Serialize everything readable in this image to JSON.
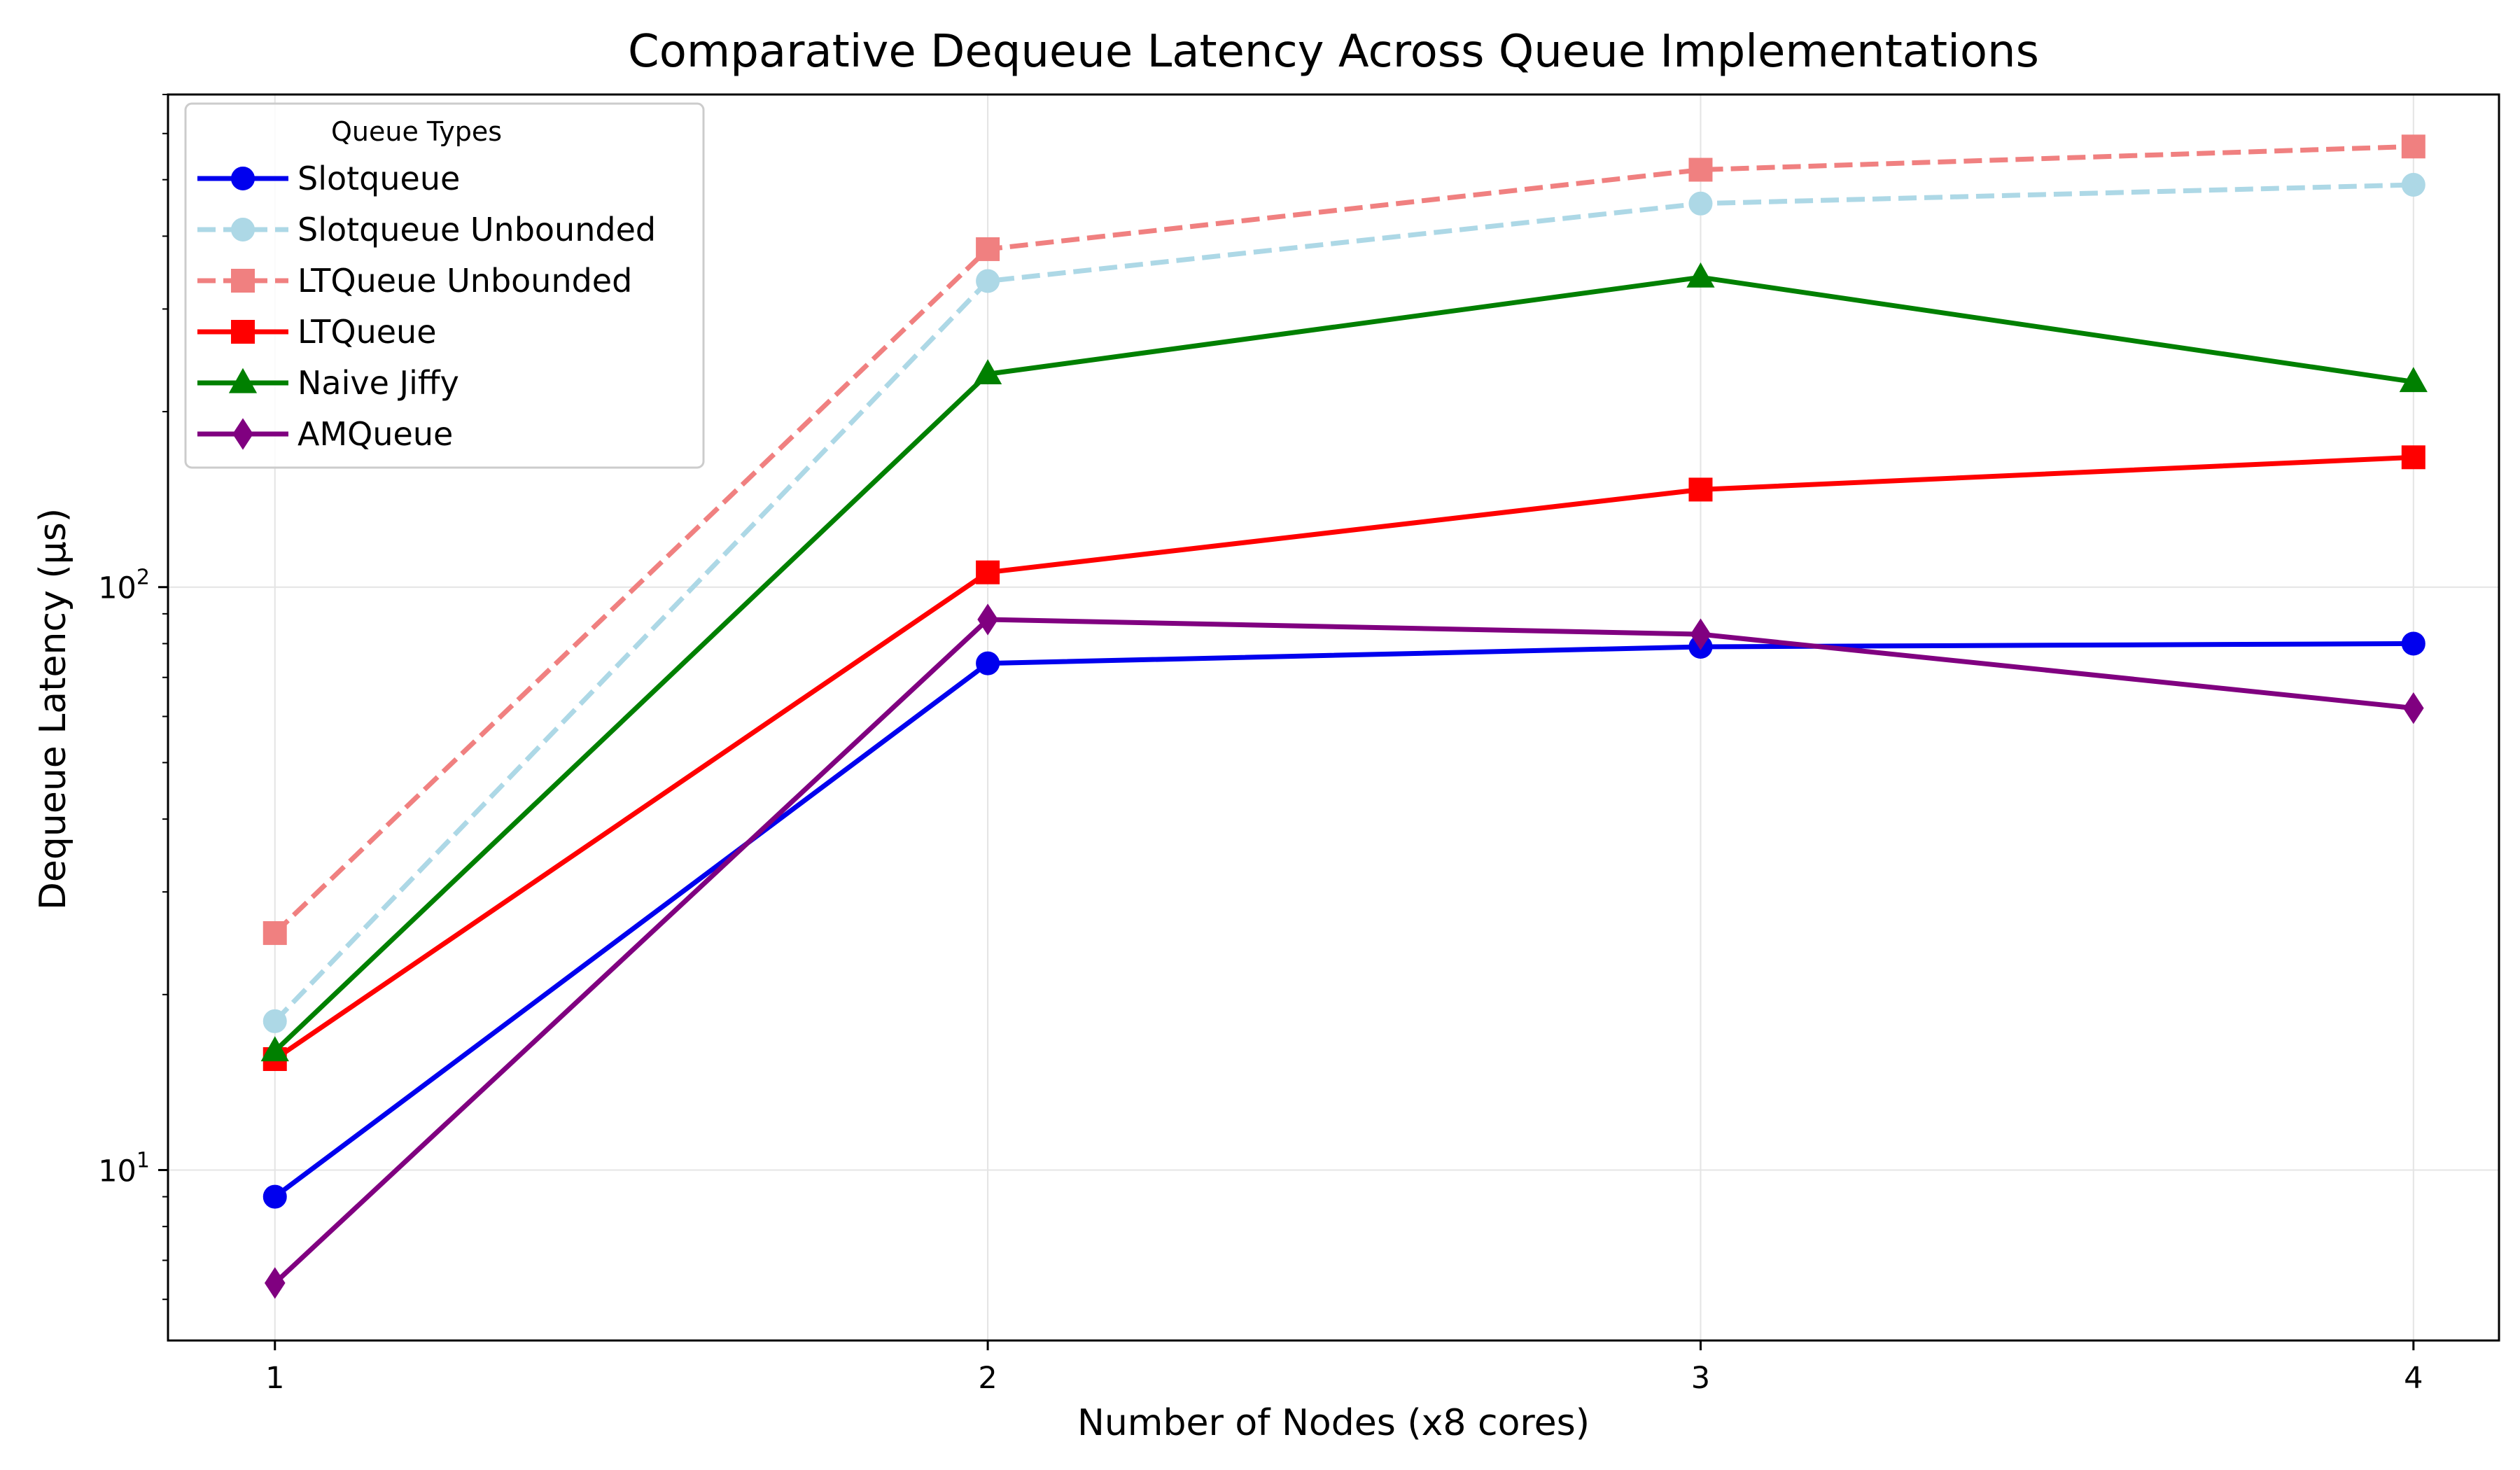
{
  "chart_data": {
    "type": "line",
    "title": "Comparative Dequeue Latency Across Queue Implementations",
    "xlabel": "Number of Nodes (x8 cores)",
    "ylabel": "Dequeue Latency (µs)",
    "x": [
      1,
      2,
      3,
      4
    ],
    "x_ticks": [
      "1",
      "2",
      "3",
      "4"
    ],
    "xlim": [
      0.85,
      4.12
    ],
    "y_scale": "log",
    "ylim": [
      5.1,
      700
    ],
    "y_ticks": [
      {
        "value": 10,
        "base": "10",
        "exp": "1"
      },
      {
        "value": 100,
        "base": "10",
        "exp": "2"
      }
    ],
    "grid": true,
    "legend": {
      "title": "Queue Types",
      "placement": "top-left"
    },
    "series": [
      {
        "name": "Slotqueue",
        "values": [
          9,
          74,
          79,
          80
        ],
        "color": "#0000ee",
        "marker": "circle",
        "dash": "solid"
      },
      {
        "name": "Slotqueue Unbounded",
        "values": [
          18,
          335,
          455,
          490
        ],
        "color": "#add8e6",
        "marker": "circle",
        "dash": "dashed"
      },
      {
        "name": "LTQueue Unbounded",
        "values": [
          25.5,
          380,
          520,
          570
        ],
        "color": "#f08080",
        "marker": "square",
        "dash": "dashed"
      },
      {
        "name": "LTQueue",
        "values": [
          15.5,
          106,
          147,
          167
        ],
        "color": "#ff0000",
        "marker": "square",
        "dash": "solid"
      },
      {
        "name": "Naive Jiffy",
        "values": [
          16,
          232,
          340,
          225
        ],
        "color": "#008000",
        "marker": "triangle",
        "dash": "solid"
      },
      {
        "name": "AMQueue",
        "values": [
          6.4,
          88,
          83,
          62
        ],
        "color": "#800080",
        "marker": "diamond",
        "dash": "solid"
      }
    ]
  }
}
